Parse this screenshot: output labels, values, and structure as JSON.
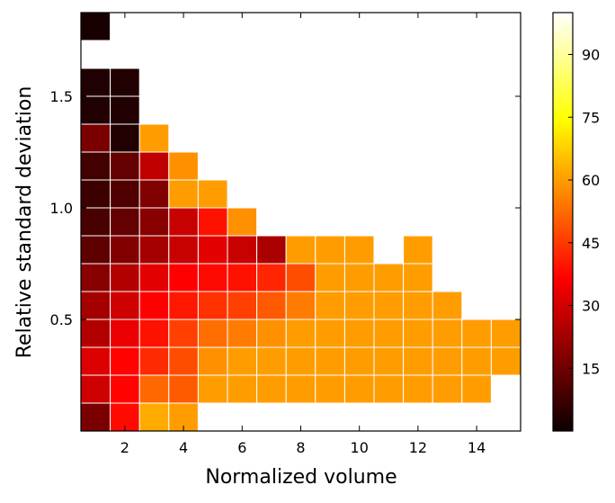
{
  "chart_data": {
    "type": "heatmap",
    "title": "",
    "xlabel": "Normalized volume",
    "ylabel": "Relative standard deviation",
    "xlim": [
      0.5,
      15.5
    ],
    "ylim": [
      0.0,
      1.875
    ],
    "x_ticks": [
      2,
      4,
      6,
      8,
      10,
      12,
      14
    ],
    "x_tick_labels": [
      "2",
      "4",
      "6",
      "8",
      "10",
      "12",
      "14"
    ],
    "y_ticks": [
      0.5,
      1.0,
      1.5
    ],
    "y_tick_labels": [
      "0.5",
      "1.0",
      "1.5"
    ],
    "colorbar": {
      "colormap": "hot",
      "range": [
        0,
        100
      ],
      "ticks": [
        15,
        30,
        45,
        60,
        75,
        90
      ],
      "tick_labels": [
        "15",
        "30",
        "45",
        "60",
        "75",
        "90"
      ]
    },
    "columns": [
      1,
      2,
      3,
      4,
      5,
      6,
      7,
      8,
      9,
      10,
      11,
      12,
      13,
      14,
      15
    ],
    "rows": [
      0.0625,
      0.1875,
      0.3125,
      0.4375,
      0.5625,
      0.6875,
      0.8125,
      0.9375,
      1.0625,
      1.1875,
      1.3125,
      1.4375,
      1.5625,
      1.6875,
      1.8125
    ],
    "values": [
      [
        16,
        38,
        62,
        60,
        null,
        null,
        null,
        null,
        null,
        null,
        null,
        null,
        null,
        null,
        null
      ],
      [
        28,
        37,
        52,
        50,
        60,
        60,
        60,
        60,
        60,
        60,
        60,
        60,
        60,
        60,
        null
      ],
      [
        30,
        37,
        43,
        48,
        58,
        60,
        60,
        60,
        60,
        60,
        60,
        60,
        60,
        60,
        60
      ],
      [
        24,
        32,
        39,
        46,
        53,
        55,
        58,
        60,
        60,
        60,
        60,
        60,
        60,
        60,
        60
      ],
      [
        22,
        28,
        36,
        40,
        44,
        46,
        50,
        55,
        60,
        60,
        60,
        60,
        60,
        null,
        null
      ],
      [
        18,
        24,
        31,
        36,
        38,
        39,
        42,
        48,
        60,
        60,
        60,
        60,
        null,
        null,
        null
      ],
      [
        12,
        17,
        22,
        27,
        31,
        27,
        23,
        60,
        60,
        60,
        null,
        60,
        null,
        null,
        null
      ],
      [
        9,
        13,
        18,
        27,
        39,
        58,
        null,
        null,
        null,
        null,
        null,
        null,
        null,
        null,
        null
      ],
      [
        7,
        10,
        17,
        60,
        60,
        null,
        null,
        null,
        null,
        null,
        null,
        null,
        null,
        null,
        null
      ],
      [
        8,
        13,
        26,
        58,
        null,
        null,
        null,
        null,
        null,
        null,
        null,
        null,
        null,
        null,
        null
      ],
      [
        16,
        3,
        60,
        null,
        null,
        null,
        null,
        null,
        null,
        null,
        null,
        null,
        null,
        null,
        null
      ],
      [
        3,
        3,
        null,
        null,
        null,
        null,
        null,
        null,
        null,
        null,
        null,
        null,
        null,
        null,
        null
      ],
      [
        3,
        3,
        null,
        null,
        null,
        null,
        null,
        null,
        null,
        null,
        null,
        null,
        null,
        null,
        null
      ],
      [
        null,
        null,
        null,
        null,
        null,
        null,
        null,
        null,
        null,
        null,
        null,
        null,
        null,
        null,
        null
      ],
      [
        2,
        null,
        null,
        null,
        null,
        null,
        null,
        null,
        null,
        null,
        null,
        null,
        null,
        null,
        null
      ]
    ]
  }
}
